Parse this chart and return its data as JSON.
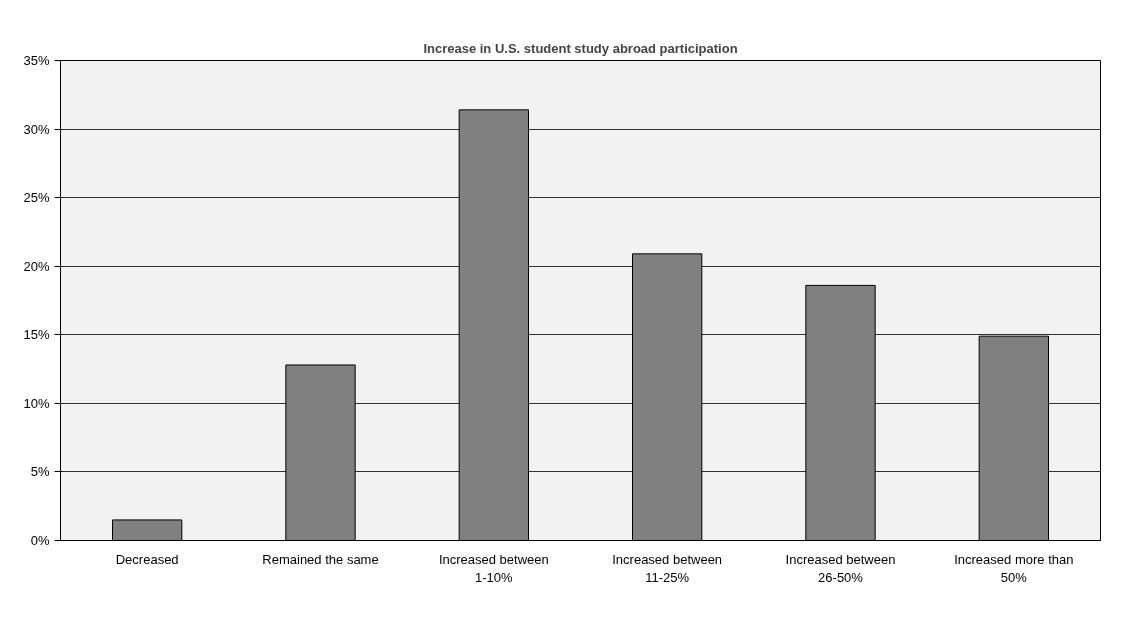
{
  "chart_data": {
    "type": "bar",
    "title": "Increase in U.S. student study abroad participation",
    "categories": [
      "Decreased",
      "Remained the same",
      "Increased between\n1-10%",
      "Increased between\n11-25%",
      "Increased between\n26-50%",
      "Increased more than\n50%"
    ],
    "values": [
      1.5,
      12.8,
      31.4,
      20.9,
      18.6,
      14.9
    ],
    "color": "#808080",
    "ylim": [
      0,
      35
    ],
    "yticks": [
      {
        "value": 0,
        "label": "0%"
      },
      {
        "value": 5,
        "label": "5%"
      },
      {
        "value": 10,
        "label": "10%"
      },
      {
        "value": 15,
        "label": "15%"
      },
      {
        "value": 20,
        "label": "20%"
      },
      {
        "value": 25,
        "label": "25%"
      },
      {
        "value": 30,
        "label": "30%"
      },
      {
        "value": 35,
        "label": "35%"
      }
    ],
    "grid": "y"
  }
}
